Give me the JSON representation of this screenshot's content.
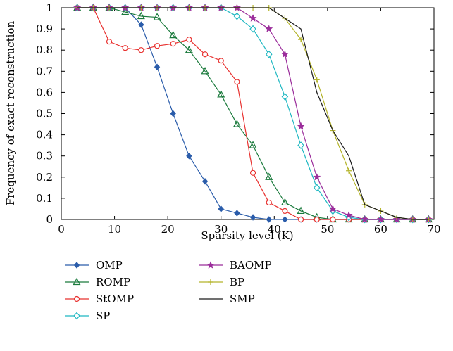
{
  "chart_data": {
    "type": "line",
    "title": "",
    "xlabel": "Sparsity level (K)",
    "ylabel": "Frequency of exact reconstruction",
    "xlim": [
      0,
      70
    ],
    "ylim": [
      0,
      1
    ],
    "xticks": [
      0,
      10,
      20,
      30,
      40,
      50,
      60,
      70
    ],
    "yticks": [
      0,
      0.1,
      0.2,
      0.3,
      0.4,
      0.5,
      0.6,
      0.7,
      0.8,
      0.9,
      1
    ],
    "ytick_labels": [
      "0",
      "0.1",
      "0.2",
      "0.3",
      "0.4",
      "0.5",
      "0.6",
      "0.7",
      "0.8",
      "0.9",
      "1"
    ],
    "grid": false,
    "legend_position": "bottom",
    "series": [
      {
        "name": "OMP",
        "color": "#2a5caa",
        "marker": "diamond-filled",
        "points": [
          [
            3,
            1
          ],
          [
            6,
            1
          ],
          [
            9,
            1
          ],
          [
            12,
            1
          ],
          [
            15,
            0.92
          ],
          [
            18,
            0.72
          ],
          [
            21,
            0.5
          ],
          [
            24,
            0.3
          ],
          [
            27,
            0.18
          ],
          [
            30,
            0.05
          ],
          [
            33,
            0.03
          ],
          [
            36,
            0.01
          ],
          [
            39,
            0
          ],
          [
            42,
            0
          ],
          [
            45,
            0
          ],
          [
            48,
            0
          ],
          [
            51,
            0
          ],
          [
            54,
            0
          ],
          [
            57,
            0
          ],
          [
            60,
            0
          ],
          [
            63,
            0
          ],
          [
            66,
            0
          ],
          [
            69,
            0
          ]
        ]
      },
      {
        "name": "ROMP",
        "color": "#1a7a3c",
        "marker": "triangle",
        "points": [
          [
            3,
            1
          ],
          [
            6,
            1
          ],
          [
            9,
            1
          ],
          [
            12,
            0.98
          ],
          [
            15,
            0.96
          ],
          [
            18,
            0.955
          ],
          [
            21,
            0.87
          ],
          [
            24,
            0.8
          ],
          [
            27,
            0.7
          ],
          [
            30,
            0.59
          ],
          [
            33,
            0.45
          ],
          [
            36,
            0.35
          ],
          [
            39,
            0.2
          ],
          [
            42,
            0.08
          ],
          [
            45,
            0.04
          ],
          [
            48,
            0.01
          ],
          [
            51,
            0
          ],
          [
            54,
            0
          ],
          [
            57,
            0
          ],
          [
            60,
            0
          ],
          [
            63,
            0
          ],
          [
            66,
            0
          ],
          [
            69,
            0
          ]
        ]
      },
      {
        "name": "StOMP",
        "color": "#e8312f",
        "marker": "circle",
        "points": [
          [
            3,
            1
          ],
          [
            6,
            1
          ],
          [
            9,
            0.84
          ],
          [
            12,
            0.81
          ],
          [
            15,
            0.8
          ],
          [
            18,
            0.82
          ],
          [
            21,
            0.83
          ],
          [
            24,
            0.85
          ],
          [
            27,
            0.78
          ],
          [
            30,
            0.75
          ],
          [
            33,
            0.65
          ],
          [
            36,
            0.22
          ],
          [
            39,
            0.08
          ],
          [
            42,
            0.04
          ],
          [
            45,
            0
          ],
          [
            48,
            0
          ],
          [
            51,
            0
          ],
          [
            54,
            0
          ],
          [
            57,
            0
          ],
          [
            60,
            0
          ],
          [
            63,
            0
          ],
          [
            66,
            0
          ],
          [
            69,
            0
          ]
        ]
      },
      {
        "name": "SP",
        "color": "#1fb8c2",
        "marker": "diamond",
        "points": [
          [
            3,
            1
          ],
          [
            6,
            1
          ],
          [
            9,
            1
          ],
          [
            12,
            1
          ],
          [
            15,
            1
          ],
          [
            18,
            1
          ],
          [
            21,
            1
          ],
          [
            24,
            1
          ],
          [
            27,
            1
          ],
          [
            30,
            1
          ],
          [
            33,
            0.96
          ],
          [
            36,
            0.9
          ],
          [
            39,
            0.78
          ],
          [
            42,
            0.58
          ],
          [
            45,
            0.35
          ],
          [
            48,
            0.15
          ],
          [
            51,
            0.04
          ],
          [
            54,
            0.01
          ],
          [
            57,
            0
          ],
          [
            60,
            0
          ],
          [
            63,
            0
          ],
          [
            66,
            0
          ],
          [
            69,
            0
          ]
        ]
      },
      {
        "name": "BAOMP",
        "color": "#9b2d9b",
        "marker": "star",
        "points": [
          [
            3,
            1
          ],
          [
            6,
            1
          ],
          [
            9,
            1
          ],
          [
            12,
            1
          ],
          [
            15,
            1
          ],
          [
            18,
            1
          ],
          [
            21,
            1
          ],
          [
            24,
            1
          ],
          [
            27,
            1
          ],
          [
            30,
            1
          ],
          [
            33,
            1
          ],
          [
            36,
            0.95
          ],
          [
            39,
            0.9
          ],
          [
            42,
            0.78
          ],
          [
            45,
            0.44
          ],
          [
            48,
            0.2
          ],
          [
            51,
            0.05
          ],
          [
            54,
            0.02
          ],
          [
            57,
            0
          ],
          [
            60,
            0
          ],
          [
            63,
            0
          ],
          [
            66,
            0
          ],
          [
            69,
            0
          ]
        ]
      },
      {
        "name": "BP",
        "color": "#b4b42a",
        "marker": "plus",
        "points": [
          [
            3,
            1
          ],
          [
            6,
            1
          ],
          [
            9,
            1
          ],
          [
            12,
            1
          ],
          [
            15,
            1
          ],
          [
            18,
            1
          ],
          [
            21,
            1
          ],
          [
            24,
            1
          ],
          [
            27,
            1
          ],
          [
            30,
            1
          ],
          [
            33,
            1
          ],
          [
            36,
            1
          ],
          [
            39,
            1
          ],
          [
            42,
            0.95
          ],
          [
            45,
            0.85
          ],
          [
            48,
            0.66
          ],
          [
            51,
            0.42
          ],
          [
            54,
            0.23
          ],
          [
            57,
            0.07
          ],
          [
            60,
            0.04
          ],
          [
            63,
            0.01
          ],
          [
            66,
            0
          ],
          [
            69,
            0
          ]
        ]
      },
      {
        "name": "SMP",
        "color": "#1a1a1a",
        "marker": "none",
        "points": [
          [
            3,
            1
          ],
          [
            6,
            1
          ],
          [
            9,
            1
          ],
          [
            12,
            1
          ],
          [
            15,
            1
          ],
          [
            18,
            1
          ],
          [
            21,
            1
          ],
          [
            24,
            1
          ],
          [
            27,
            1
          ],
          [
            30,
            1
          ],
          [
            33,
            1
          ],
          [
            36,
            1
          ],
          [
            39,
            1
          ],
          [
            42,
            0.95
          ],
          [
            45,
            0.9
          ],
          [
            48,
            0.6
          ],
          [
            51,
            0.42
          ],
          [
            54,
            0.3
          ],
          [
            57,
            0.07
          ],
          [
            60,
            0.04
          ],
          [
            63,
            0.01
          ],
          [
            66,
            0
          ],
          [
            69,
            0
          ]
        ]
      }
    ]
  }
}
